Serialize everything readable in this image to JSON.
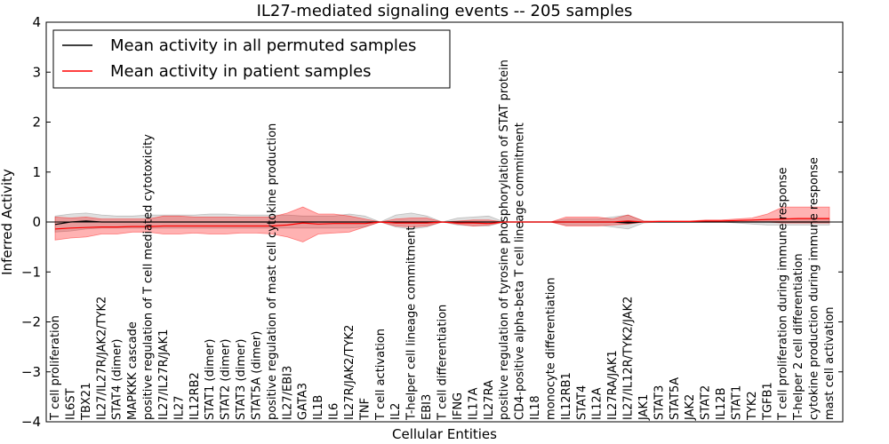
{
  "chart_data": {
    "type": "line",
    "title": "IL27-mediated signaling events -- 205 samples",
    "xlabel": "Cellular Entities",
    "ylabel": "Inferred Activity",
    "ylim": [
      -4,
      4
    ],
    "yticks": [
      "4",
      "3",
      "2",
      "1",
      "0",
      "−1",
      "−2",
      "−3",
      "−4"
    ],
    "ytick_values": [
      4,
      3,
      2,
      1,
      0,
      -1,
      -2,
      -3,
      -4
    ],
    "legend": {
      "position": "top-left",
      "entries": [
        {
          "label": "Mean activity in all permuted samples",
          "color": "#000000"
        },
        {
          "label": "Mean activity in patient samples",
          "color": "#ff0000"
        }
      ]
    },
    "categories": [
      "T cell proliferation",
      "IL6ST",
      "TBX21",
      "IL27/IL27R/JAK2/TYK2",
      "STAT4 (dimer)",
      "MAPKKK cascade",
      "positive regulation of T cell mediated cytotoxicity",
      "IL27/IL27R/JAK1",
      "IL27",
      "IL12RB2",
      "STAT1 (dimer)",
      "STAT2 (dimer)",
      "STAT3 (dimer)",
      "STAT5A (dimer)",
      "positive regulation of mast cell cytokine production",
      "IL27/EBI3",
      "GATA3",
      "IL1B",
      "IL6",
      "IL27R/JAK2/TYK2",
      "TNF",
      "T cell activation",
      "IL2",
      "T-helper cell lineage commitment",
      "EBI3",
      "T cell differentiation",
      "IFNG",
      "IL17A",
      "IL27RA",
      "positive regulation of tyrosine phosphorylation of STAT protein",
      "CD4-positive alpha-beta T cell lineage commitment",
      "IL18",
      "monocyte differentiation",
      "IL12RB1",
      "STAT4",
      "IL12A",
      "IL27RA/JAK1",
      "IL27/IL12R/TYK2/JAK2",
      "JAK1",
      "STAT3",
      "STAT5A",
      "JAK2",
      "STAT2",
      "IL12B",
      "STAT1",
      "TYK2",
      "TGFB1",
      "T cell proliferation during immune response",
      "T-helper 2 cell differentiation",
      "cytokine production during immune response",
      "mast cell activation"
    ],
    "series": [
      {
        "name": "Mean activity in all permuted samples",
        "color": "#000000",
        "values": [
          -0.05,
          0.0,
          0.02,
          0.0,
          0.0,
          0.0,
          0.0,
          0.0,
          0.0,
          0.0,
          0.0,
          0.0,
          0.0,
          0.0,
          0.0,
          0.0,
          0.0,
          0.0,
          0.0,
          0.0,
          0.0,
          0.0,
          0.0,
          0.0,
          0.0,
          0.0,
          0.0,
          0.0,
          0.0,
          0.0,
          0.0,
          0.0,
          0.0,
          0.0,
          0.0,
          0.0,
          0.0,
          -0.02,
          0.0,
          0.0,
          0.0,
          0.0,
          0.0,
          0.0,
          0.0,
          0.0,
          0.0,
          0.0,
          0.0,
          0.0,
          0.0
        ],
        "band_lower": [
          -0.2,
          -0.18,
          -0.14,
          -0.12,
          -0.12,
          -0.12,
          -0.12,
          -0.12,
          -0.12,
          -0.12,
          -0.12,
          -0.12,
          -0.12,
          -0.12,
          -0.12,
          -0.12,
          -0.12,
          -0.12,
          -0.12,
          -0.12,
          -0.1,
          0.0,
          -0.1,
          -0.14,
          -0.1,
          0.0,
          -0.06,
          -0.08,
          -0.08,
          0.0,
          0.0,
          0.0,
          0.0,
          -0.06,
          -0.06,
          -0.06,
          -0.1,
          -0.14,
          -0.02,
          0.0,
          0.0,
          0.0,
          0.0,
          0.0,
          -0.02,
          -0.04,
          -0.06,
          -0.06,
          -0.06,
          -0.06,
          -0.06
        ],
        "band_upper": [
          0.12,
          0.16,
          0.18,
          0.14,
          0.12,
          0.12,
          0.14,
          0.14,
          0.14,
          0.14,
          0.16,
          0.16,
          0.14,
          0.14,
          0.14,
          0.14,
          0.12,
          0.12,
          0.12,
          0.16,
          0.12,
          0.0,
          0.14,
          0.18,
          0.12,
          0.0,
          0.08,
          0.1,
          0.12,
          0.0,
          0.0,
          0.0,
          0.0,
          0.06,
          0.06,
          0.06,
          0.1,
          0.14,
          0.02,
          0.0,
          0.0,
          0.0,
          0.0,
          0.0,
          0.02,
          0.04,
          0.06,
          0.06,
          0.06,
          0.06,
          0.06
        ]
      },
      {
        "name": "Mean activity in patient samples",
        "color": "#ff0000",
        "values": [
          -0.14,
          -0.12,
          -0.11,
          -0.1,
          -0.1,
          -0.09,
          -0.09,
          -0.08,
          -0.08,
          -0.08,
          -0.08,
          -0.08,
          -0.08,
          -0.08,
          -0.08,
          -0.06,
          -0.02,
          -0.04,
          -0.03,
          -0.03,
          -0.03,
          0.0,
          -0.02,
          -0.02,
          -0.02,
          0.0,
          -0.02,
          -0.02,
          -0.03,
          0.0,
          0.0,
          0.0,
          0.0,
          0.0,
          0.0,
          0.0,
          0.0,
          0.02,
          0.0,
          0.01,
          0.01,
          0.01,
          0.02,
          0.02,
          0.03,
          0.04,
          0.05,
          0.06,
          0.07,
          0.07,
          0.07
        ],
        "band_lower": [
          -0.36,
          -0.32,
          -0.3,
          -0.24,
          -0.24,
          -0.2,
          -0.2,
          -0.24,
          -0.24,
          -0.22,
          -0.24,
          -0.24,
          -0.22,
          -0.22,
          -0.24,
          -0.3,
          -0.4,
          -0.24,
          -0.22,
          -0.2,
          -0.1,
          0.0,
          -0.08,
          -0.1,
          -0.08,
          0.0,
          -0.04,
          -0.08,
          -0.06,
          0.0,
          0.0,
          0.0,
          0.0,
          -0.08,
          -0.08,
          -0.08,
          -0.06,
          -0.04,
          0.0,
          0.0,
          0.0,
          0.0,
          0.0,
          0.0,
          0.0,
          0.0,
          0.0,
          -0.02,
          -0.02,
          -0.02,
          -0.02
        ],
        "band_upper": [
          0.1,
          0.08,
          0.1,
          0.06,
          0.06,
          0.06,
          0.06,
          0.12,
          0.12,
          0.1,
          0.1,
          0.1,
          0.1,
          0.1,
          0.1,
          0.18,
          0.3,
          0.16,
          0.16,
          0.12,
          0.06,
          0.0,
          0.06,
          0.08,
          0.08,
          0.0,
          0.02,
          0.04,
          0.04,
          0.0,
          0.0,
          0.0,
          0.0,
          0.1,
          0.1,
          0.1,
          0.06,
          0.14,
          0.02,
          0.02,
          0.02,
          0.02,
          0.04,
          0.04,
          0.06,
          0.08,
          0.16,
          0.3,
          0.3,
          0.3,
          0.3
        ]
      }
    ]
  }
}
